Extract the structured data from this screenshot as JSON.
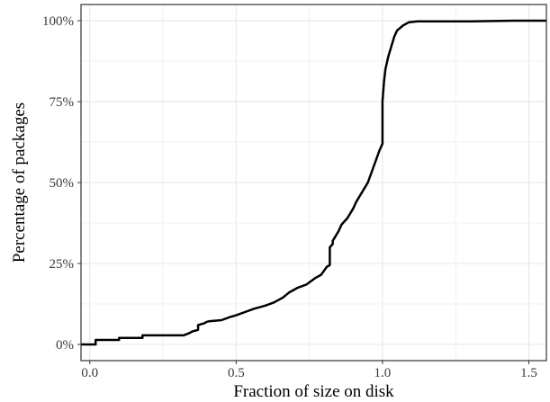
{
  "chart_data": {
    "type": "line",
    "subtype": "ecdf-step",
    "xlabel": "Fraction of size on disk",
    "ylabel": "Percentage of packages",
    "xlim": [
      -0.03,
      1.56
    ],
    "ylim": [
      -0.05,
      1.05
    ],
    "x_ticks": [
      0.0,
      0.5,
      1.0,
      1.5
    ],
    "x_tick_labels": [
      "0.0",
      "0.5",
      "1.0",
      "1.5"
    ],
    "y_ticks": [
      0,
      0.25,
      0.5,
      0.75,
      1.0
    ],
    "y_tick_labels": [
      "0%",
      "25%",
      "50%",
      "75%",
      "100%"
    ],
    "grid": true,
    "legend": "none",
    "line_color": "#000000",
    "series": [
      {
        "x": [
          -0.03,
          0.02,
          0.02,
          0.1,
          0.1,
          0.18,
          0.18,
          0.32,
          0.34,
          0.35,
          0.37,
          0.37,
          0.39,
          0.4,
          0.41,
          0.45,
          0.48,
          0.5,
          0.53,
          0.56,
          0.6,
          0.63,
          0.66,
          0.68,
          0.71,
          0.74,
          0.77,
          0.79,
          0.81,
          0.82,
          0.82,
          0.83,
          0.83,
          0.85,
          0.86,
          0.88,
          0.9,
          0.91,
          0.93,
          0.95,
          0.97,
          0.99,
          1.0,
          1.0,
          1.005,
          1.01,
          1.02,
          1.03,
          1.04,
          1.05,
          1.07,
          1.09,
          1.12,
          1.2,
          1.3,
          1.45,
          1.56
        ],
        "y": [
          0.0,
          0.0,
          0.014,
          0.014,
          0.02,
          0.02,
          0.028,
          0.028,
          0.035,
          0.04,
          0.045,
          0.06,
          0.065,
          0.07,
          0.072,
          0.075,
          0.085,
          0.09,
          0.1,
          0.11,
          0.12,
          0.13,
          0.145,
          0.16,
          0.175,
          0.185,
          0.205,
          0.215,
          0.24,
          0.245,
          0.3,
          0.31,
          0.32,
          0.35,
          0.37,
          0.39,
          0.42,
          0.44,
          0.47,
          0.5,
          0.55,
          0.6,
          0.62,
          0.75,
          0.81,
          0.85,
          0.89,
          0.92,
          0.95,
          0.97,
          0.985,
          0.995,
          0.998,
          0.998,
          0.998,
          1.0,
          1.0
        ]
      }
    ]
  }
}
